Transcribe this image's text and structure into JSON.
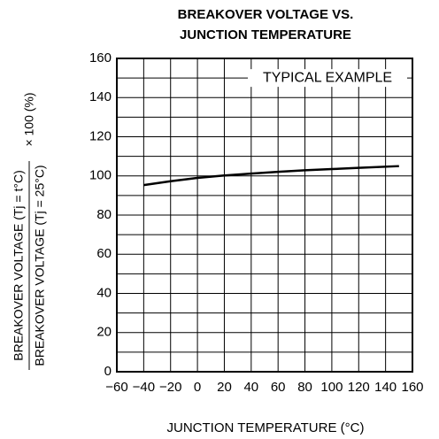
{
  "chart_data": {
    "type": "line",
    "title": [
      "BREAKOVER VOLTAGE VS.",
      "JUNCTION TEMPERATURE"
    ],
    "xlabel": "JUNCTION TEMPERATURE  (°C)",
    "ylabel": [
      "BREAKOVER VOLTAGE (Tj = t°C)",
      "BREAKOVER VOLTAGE (Tj = 25°C)",
      "× 100 (%)"
    ],
    "annotation": "TYPICAL EXAMPLE",
    "x": [
      -40,
      -20,
      0,
      20,
      40,
      60,
      80,
      100,
      120,
      150
    ],
    "series": [
      {
        "name": "TYPICAL EXAMPLE",
        "color": "#000000",
        "values": [
          95.3,
          97.3,
          99,
          100.2,
          101.2,
          102.1,
          102.9,
          103.5,
          104.1,
          105
        ]
      }
    ],
    "xlim": [
      -60,
      160
    ],
    "xticks": [
      {
        "value": -60,
        "label": "−60"
      },
      {
        "value": -40,
        "label": "−40"
      },
      {
        "value": -20,
        "label": "−20"
      },
      0,
      20,
      40,
      60,
      80,
      100,
      120,
      140,
      160
    ],
    "ylim": [
      0,
      160
    ],
    "yticks": [
      0,
      20,
      40,
      60,
      80,
      100,
      120,
      140,
      160
    ],
    "y_minor_ticks": [
      10,
      30,
      50,
      70,
      90,
      110,
      130,
      150
    ],
    "grid": true
  }
}
